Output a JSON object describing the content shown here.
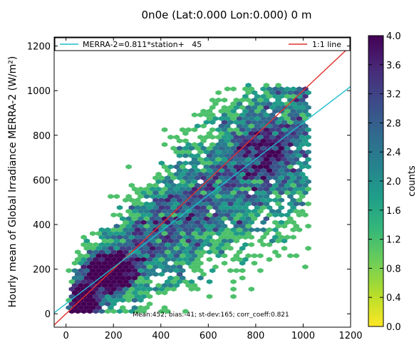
{
  "chart_data": {
    "type": "heatmap",
    "subtype": "hexbin density scatter",
    "title": "0n0e (Lat:0.000 Lon:0.000) 0 m",
    "xlabel": "",
    "ylabel": "Hourly mean of Global Irradiance MERRA-2 (W/m²)",
    "xlim": [
      -50,
      1200
    ],
    "ylim": [
      -60,
      1240
    ],
    "x_ticks": [
      "0",
      "200",
      "400",
      "600",
      "800",
      "1000",
      "1200"
    ],
    "y_ticks": [
      "0",
      "200",
      "400",
      "600",
      "800",
      "1000",
      "1200"
    ],
    "grid": false,
    "legend_placement": "top",
    "legend": {
      "fit_label": "MERRA-2=0.811*station+   45",
      "identity_label": "1:1 line"
    },
    "fit_line": {
      "slope": 0.811,
      "intercept": 45,
      "color": "#1fbdcc"
    },
    "identity_line": {
      "slope": 1,
      "intercept": 0,
      "color": "#e0332e"
    },
    "stats_annotation": "Mean:452; bias:-41; st-dev:165; corr_coeff:0.821",
    "colorbar": {
      "label": "counts",
      "min": 0.0,
      "max": 4.0,
      "ticks": [
        "0.0",
        "0.4",
        "0.8",
        "1.2",
        "1.6",
        "2.0",
        "2.4",
        "2.8",
        "3.2",
        "3.6",
        "4.0"
      ],
      "colormap": [
        "#fde725",
        "#b5de2b",
        "#6ece58",
        "#35b779",
        "#1f9e89",
        "#26828e",
        "#31688e",
        "#3e4989",
        "#482878",
        "#440154"
      ]
    },
    "density_regions": [
      {
        "x": 60,
        "y": 40,
        "count": 4.0
      },
      {
        "x": 70,
        "y": 70,
        "count": 3.8
      },
      {
        "x": 50,
        "y": 20,
        "count": 3.6
      },
      {
        "x": 170,
        "y": 190,
        "count": 3.2
      },
      {
        "x": 200,
        "y": 170,
        "count": 3.0
      },
      {
        "x": 230,
        "y": 210,
        "count": 2.6
      },
      {
        "x": 150,
        "y": 230,
        "count": 2.4
      },
      {
        "x": 850,
        "y": 700,
        "count": 2.2
      },
      {
        "x": 800,
        "y": 780,
        "count": 2.0
      },
      {
        "x": 600,
        "y": 550,
        "count": 1.6
      },
      {
        "x": 450,
        "y": 400,
        "count": 1.4
      }
    ]
  }
}
